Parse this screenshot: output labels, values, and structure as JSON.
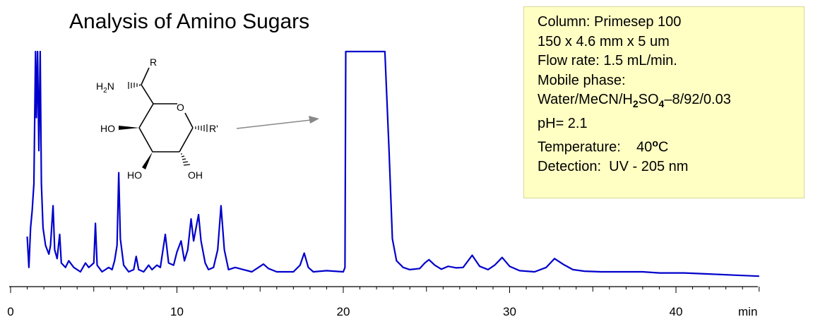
{
  "chart_data": {
    "type": "line",
    "title": "Analysis of Amino Sugars",
    "xlabel": "min",
    "ylabel": "",
    "xlim": [
      0,
      45
    ],
    "xticks": [
      0,
      10,
      20,
      30,
      40
    ],
    "x_unit_label": "min",
    "grid": false,
    "line_color": "#0000cc",
    "series": [
      {
        "points": [
          [
            1.0,
            0.16
          ],
          [
            1.1,
            0.02
          ],
          [
            1.2,
            0.2
          ],
          [
            1.3,
            0.28
          ],
          [
            1.4,
            0.4
          ],
          [
            1.5,
            1.0
          ],
          [
            1.55,
            0.7
          ],
          [
            1.62,
            1.0
          ],
          [
            1.7,
            0.55
          ],
          [
            1.78,
            1.0
          ],
          [
            1.85,
            0.4
          ],
          [
            1.95,
            0.2
          ],
          [
            2.1,
            0.12
          ],
          [
            2.3,
            0.08
          ],
          [
            2.4,
            0.12
          ],
          [
            2.55,
            0.3
          ],
          [
            2.65,
            0.1
          ],
          [
            2.8,
            0.06
          ],
          [
            2.95,
            0.17
          ],
          [
            3.05,
            0.04
          ],
          [
            3.3,
            0.02
          ],
          [
            3.5,
            0.05
          ],
          [
            3.8,
            0.02
          ],
          [
            4.2,
            0.0
          ],
          [
            4.5,
            0.04
          ],
          [
            4.7,
            0.02
          ],
          [
            5.0,
            0.04
          ],
          [
            5.1,
            0.22
          ],
          [
            5.2,
            0.03
          ],
          [
            5.5,
            0.0
          ],
          [
            5.9,
            0.02
          ],
          [
            6.1,
            0.01
          ],
          [
            6.25,
            0.05
          ],
          [
            6.4,
            0.12
          ],
          [
            6.5,
            0.45
          ],
          [
            6.6,
            0.15
          ],
          [
            6.8,
            0.03
          ],
          [
            7.1,
            0.0
          ],
          [
            7.4,
            0.01
          ],
          [
            7.55,
            0.07
          ],
          [
            7.7,
            0.01
          ],
          [
            8.0,
            0.0
          ],
          [
            8.3,
            0.03
          ],
          [
            8.5,
            0.01
          ],
          [
            8.8,
            0.03
          ],
          [
            9.0,
            0.02
          ],
          [
            9.3,
            0.17
          ],
          [
            9.5,
            0.04
          ],
          [
            9.8,
            0.03
          ],
          [
            10.0,
            0.09
          ],
          [
            10.25,
            0.14
          ],
          [
            10.45,
            0.05
          ],
          [
            10.65,
            0.1
          ],
          [
            10.85,
            0.24
          ],
          [
            11.0,
            0.14
          ],
          [
            11.15,
            0.2
          ],
          [
            11.3,
            0.26
          ],
          [
            11.45,
            0.14
          ],
          [
            11.7,
            0.04
          ],
          [
            11.9,
            0.01
          ],
          [
            12.2,
            0.02
          ],
          [
            12.45,
            0.1
          ],
          [
            12.65,
            0.3
          ],
          [
            12.85,
            0.1
          ],
          [
            13.1,
            0.01
          ],
          [
            13.5,
            0.02
          ],
          [
            14.0,
            0.01
          ],
          [
            14.5,
            0.0
          ],
          [
            14.9,
            0.02
          ],
          [
            15.2,
            0.035
          ],
          [
            15.5,
            0.015
          ],
          [
            16.0,
            0.0
          ],
          [
            16.5,
            0.0
          ],
          [
            17.0,
            0.0
          ],
          [
            17.4,
            0.03
          ],
          [
            17.65,
            0.085
          ],
          [
            17.9,
            0.02
          ],
          [
            18.2,
            0.0
          ],
          [
            19.0,
            0.005
          ],
          [
            20.0,
            0.0
          ],
          [
            20.1,
            0.02
          ],
          [
            20.15,
            1.0
          ],
          [
            22.5,
            1.0
          ],
          [
            22.75,
            0.55
          ],
          [
            22.95,
            0.15
          ],
          [
            23.2,
            0.05
          ],
          [
            23.6,
            0.02
          ],
          [
            24.0,
            0.01
          ],
          [
            24.6,
            0.015
          ],
          [
            24.9,
            0.04
          ],
          [
            25.15,
            0.055
          ],
          [
            25.5,
            0.03
          ],
          [
            25.9,
            0.012
          ],
          [
            26.3,
            0.025
          ],
          [
            26.8,
            0.018
          ],
          [
            27.2,
            0.02
          ],
          [
            27.75,
            0.075
          ],
          [
            28.2,
            0.025
          ],
          [
            28.7,
            0.01
          ],
          [
            29.1,
            0.03
          ],
          [
            29.55,
            0.065
          ],
          [
            30.0,
            0.025
          ],
          [
            30.6,
            0.005
          ],
          [
            31.5,
            0.0
          ],
          [
            32.2,
            0.02
          ],
          [
            32.7,
            0.06
          ],
          [
            33.2,
            0.035
          ],
          [
            33.8,
            0.01
          ],
          [
            34.5,
            0.003
          ],
          [
            35.5,
            0.0
          ],
          [
            37.0,
            0.0
          ],
          [
            38.0,
            0.0
          ],
          [
            39.0,
            -0.005
          ],
          [
            40.5,
            -0.005
          ],
          [
            42.0,
            -0.01
          ],
          [
            43.5,
            -0.015
          ],
          [
            45.0,
            -0.02
          ]
        ]
      }
    ]
  },
  "structure": {
    "r_label": "R",
    "h2n_label": "H",
    "h2n_sub": "2",
    "h2n_suffix": "N",
    "o_label": "O",
    "ho_left": "HO",
    "r_prime": "R'",
    "ho_bottom": "HO",
    "oh_bottom": "OH"
  },
  "conditions": {
    "column": "Column: Primesep 100",
    "dimensions": "150 x 4.6 mm x 5 um",
    "flow_rate": "Flow rate: 1.5 mL/min.",
    "mobile_phase_label": "Mobile phase:",
    "mobile_phase_prefix": "Water/MeCN/H",
    "mobile_phase_h_sub": "2",
    "mobile_phase_so": "SO",
    "mobile_phase_so_sub": "4",
    "mobile_phase_suffix": "–8/92/0.03",
    "ph": "pH= 2.1",
    "temperature_label": "Temperature:    40",
    "temperature_degree": "o",
    "temperature_unit": "C",
    "detection": "Detection:  UV - 205 nm"
  }
}
